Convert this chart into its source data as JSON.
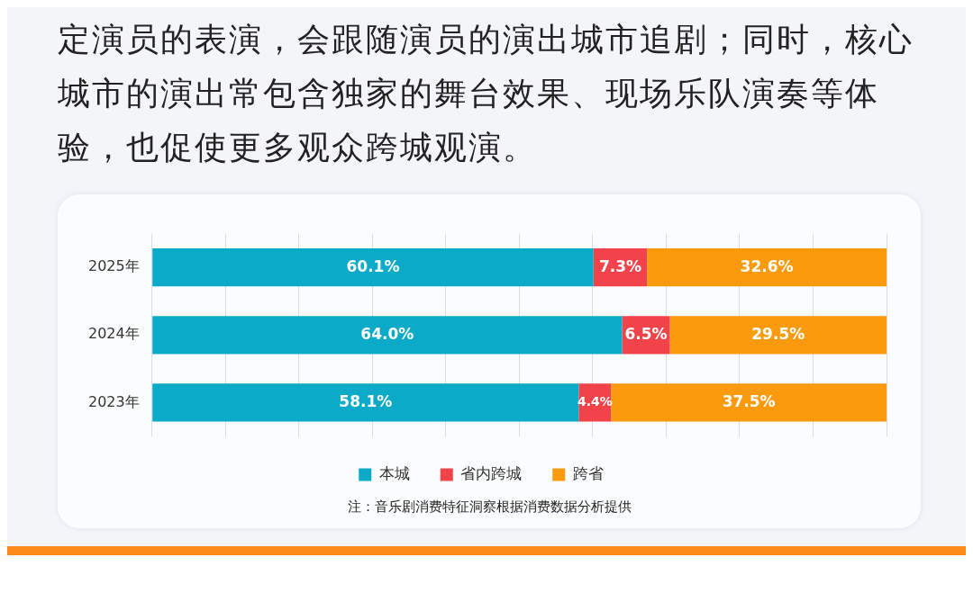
{
  "chart_data": {
    "type": "bar",
    "orientation": "horizontal",
    "stacked": true,
    "categories": [
      "2025年",
      "2024年",
      "2023年"
    ],
    "series": [
      {
        "name": "本城",
        "color": "#0aaac8",
        "values": [
          60.1,
          64.0,
          58.1
        ],
        "value_labels": [
          "60.1%",
          "64.0%",
          "58.1%"
        ]
      },
      {
        "name": "省内跨城",
        "color": "#f2434b",
        "values": [
          7.3,
          6.5,
          4.4
        ],
        "value_labels": [
          "7.3%",
          "6.5%",
          "4.4%"
        ]
      },
      {
        "name": "跨省",
        "color": "#fb9a0c",
        "values": [
          32.6,
          29.5,
          37.5
        ],
        "value_labels": [
          "32.6%",
          "29.5%",
          "37.5%"
        ]
      }
    ],
    "xlim": [
      0,
      100
    ],
    "xticks": [
      {
        "value": 0,
        "label": null
      },
      {
        "value": 10,
        "label": null
      },
      {
        "value": 20,
        "label": null
      },
      {
        "value": 30,
        "label": null
      },
      {
        "value": 40,
        "label": null
      },
      {
        "value": 50,
        "label": null
      },
      {
        "value": 60,
        "label": null
      },
      {
        "value": 70,
        "label": null
      },
      {
        "value": 80,
        "label": null
      },
      {
        "value": 90,
        "label": null
      },
      {
        "value": 100,
        "label": null
      }
    ],
    "tick_labels": "y",
    "grid": "x",
    "legend": "bottom",
    "annotations": [
      "定演员的表演，会跟随演员的演出城市追剧；同时，核心城市的演出常包含独家的舞台效果、现场乐队演奏等体验，也促使更多观众跨城观演。",
      "注：音乐剧消费特征洞察根据消费数据分析提供"
    ]
  }
}
